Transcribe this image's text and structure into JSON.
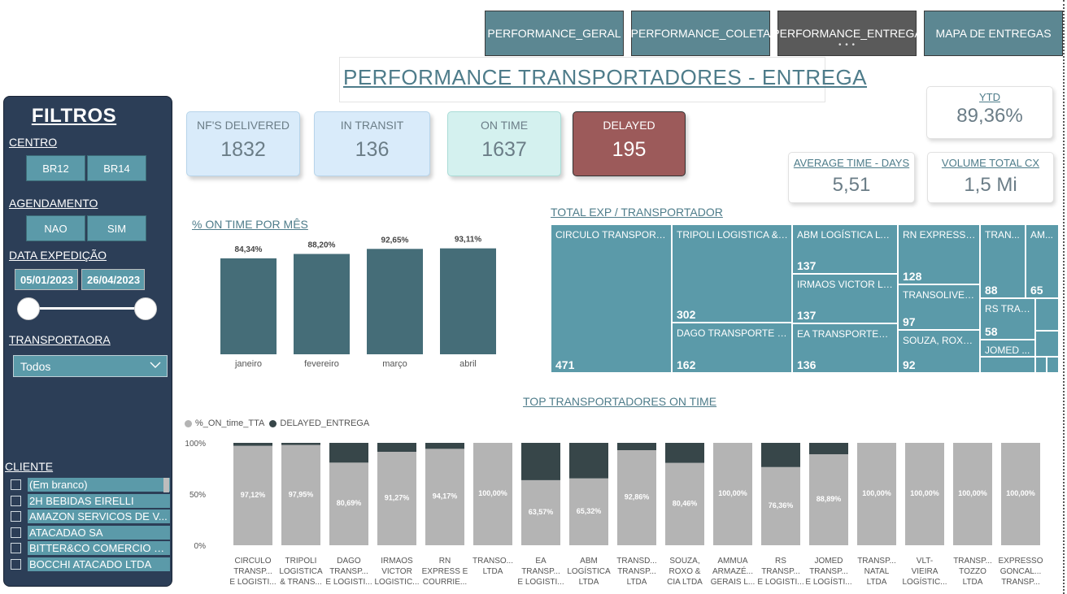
{
  "nav": [
    {
      "label": "PERFORMANCE_GERAL",
      "active": false
    },
    {
      "label": "PERFORMANCE_COLETA",
      "active": false
    },
    {
      "label": "PERFORMANCE_ENTREGA",
      "active": true
    },
    {
      "label": "MAPA DE ENTREGAS",
      "active": false
    }
  ],
  "nav_active_dots": "• • •",
  "page_title": "PERFORMANCE TRANSPORTADORES - ENTREGA",
  "sidebar": {
    "title": "FILTROS",
    "centro_label": "CENTRO",
    "centro_options": [
      "BR12",
      "BR14"
    ],
    "agendamento_label": "AGENDAMENTO",
    "agendamento_options": [
      "NAO",
      "SIM"
    ],
    "data_label": "DATA EXPEDIÇÃO",
    "date_start": "05/01/2023",
    "date_end": "26/04/2023",
    "transportadora_label": "TRANSPORTAORA",
    "transportadora_value": "Todos",
    "cliente_label": "CLIENTE",
    "clientes": [
      "(Em branco)",
      "2H BEBIDAS EIRELLI",
      "AMAZON SERVICOS DE V...",
      "ATACADAO SA",
      "BITTER&CO COMERCIO E ...",
      "BOCCHI ATACADO LTDA"
    ]
  },
  "kpis": [
    {
      "label": "NF'S DELIVERED",
      "value": "1832",
      "color": "#d9ebfa"
    },
    {
      "label": "IN TRANSIT",
      "value": "136",
      "color": "#d9ebfa"
    },
    {
      "label": "ON TIME",
      "value": "1637",
      "color": "#d4f1ef"
    },
    {
      "label": "DELAYED",
      "value": "195",
      "color": "#9c5a5a"
    }
  ],
  "ytd": {
    "label": "YTD",
    "value": "89,36%"
  },
  "avg_time": {
    "label": "AVERAGE TIME - DAYS",
    "value": "5,51"
  },
  "volume": {
    "label": "VOLUME TOTAL CX",
    "value": "1,5 Mi"
  },
  "monthly_title": "% ON TIME POR MÊS",
  "treemap_title": "TOTAL EXP / TRANSPORTADOR",
  "treemap": [
    {
      "name": "CIRCULO TRANSPORTE...",
      "value": "471"
    },
    {
      "name": "TRIPOLI LOGISTICA & T...",
      "value": "302"
    },
    {
      "name": "DAGO TRANSPORTE E ...",
      "value": "162"
    },
    {
      "name": "ABM LOGÍSTICA LTDA",
      "value": "137"
    },
    {
      "name": "IRMAOS VICTOR LO...",
      "value": "137"
    },
    {
      "name": "EA TRANSPORTES E ...",
      "value": "136"
    },
    {
      "name": "RN EXPRESS E ...",
      "value": "128"
    },
    {
      "name": "TRANSOLIVEIR...",
      "value": "97"
    },
    {
      "name": "SOUZA, ROXO ...",
      "value": "92"
    },
    {
      "name": "TRAN...",
      "value": "88"
    },
    {
      "name": "AM...",
      "value": "65"
    },
    {
      "name": "RS TRAN...",
      "value": "58"
    },
    {
      "name": "JOMED ...",
      "value": ""
    }
  ],
  "top_title": "TOP TRANSPORTADORES ON TIME",
  "colors": {
    "bar_dark": "#456d78",
    "ontime": "#b4b4b4",
    "delayed": "#374649",
    "treemap": "#5b9aa9"
  },
  "chart_data": [
    {
      "type": "bar",
      "title": "% ON TIME POR MÊS",
      "categories": [
        "janeiro",
        "fevereiro",
        "março",
        "abril"
      ],
      "values": [
        84.34,
        88.2,
        92.65,
        93.11
      ],
      "labels": [
        "84,34%",
        "88,20%",
        "92,65%",
        "93,11%"
      ],
      "ylim": [
        0,
        100
      ]
    },
    {
      "type": "bar",
      "stacked": true,
      "title": "TOP TRANSPORTADORES ON TIME",
      "categories": [
        "CIRCULO TRANSP... E LOGISTI...",
        "TRIPOLI LOGISTICA & TRANS...",
        "DAGO TRANSP... E LOGISTI...",
        "IRMAOS VICTOR LOGISTIC...",
        "RN EXPRESS E COURRIE...",
        "TRANSO... LTDA",
        "EA TRANSP... E LOGISTI...",
        "ABM LOGÍSTICA LTDA",
        "TRANSD... TRANSP... LTDA",
        "SOUZA, ROXO & CIA LTDA",
        "AMMUA ARMAZÉ... GERAIS L...",
        "RS TRANSP... E LOGISTI...",
        "JOMED TRANSP... E LOGÍSTI...",
        "TRANSP... NATAL LTDA",
        "VLT- VIEIRA LOGÍSTIC...",
        "TRANSP... TOZZO LTDA",
        "EXPRESSO GONCAL... TRANSP..."
      ],
      "category_lines": [
        [
          "CIRCULO",
          "TRANSP...",
          "E LOGISTI..."
        ],
        [
          "TRIPOLI",
          "LOGISTICA",
          "& TRANS..."
        ],
        [
          "DAGO",
          "TRANSP...",
          "E LOGISTI..."
        ],
        [
          "IRMAOS",
          "VICTOR",
          "LOGISTIC..."
        ],
        [
          "RN",
          "EXPRESS E",
          "COURRIE..."
        ],
        [
          "TRANSO...",
          "LTDA"
        ],
        [
          "EA",
          "TRANSP...",
          "E LOGISTI..."
        ],
        [
          "ABM",
          "LOGÍSTICA",
          "LTDA"
        ],
        [
          "TRANSD...",
          "TRANSP...",
          "LTDA"
        ],
        [
          "SOUZA,",
          "ROXO &",
          "CIA LTDA"
        ],
        [
          "AMMUA",
          "ARMAZÉ...",
          "GERAIS L..."
        ],
        [
          "RS",
          "TRANSP...",
          "E LOGISTI..."
        ],
        [
          "JOMED",
          "TRANSP...",
          "E LOGÍSTI..."
        ],
        [
          "TRANSP...",
          "NATAL",
          "LTDA"
        ],
        [
          "VLT-",
          "VIEIRA",
          "LOGÍSTIC..."
        ],
        [
          "TRANSP...",
          "TOZZO",
          "LTDA"
        ],
        [
          "EXPRESSO",
          "GONCAL...",
          "TRANSP..."
        ]
      ],
      "series": [
        {
          "name": "%_ON_time_TTA",
          "values": [
            97.12,
            97.95,
            80.69,
            91.27,
            94.17,
            100,
            63.57,
            65.32,
            92.86,
            80.46,
            100,
            76.36,
            88.89,
            100,
            100,
            100,
            100
          ]
        },
        {
          "name": "DELAYED_ENTREGA",
          "values": [
            2.88,
            2.05,
            19.31,
            8.73,
            5.83,
            0,
            36.43,
            34.68,
            7.14,
            19.54,
            0,
            23.64,
            11.11,
            0,
            0,
            0,
            0
          ]
        }
      ],
      "labels": [
        "97,12%",
        "97,95%",
        "80,69%",
        "91,27%",
        "94,17%",
        "100,00%",
        "63,57%",
        "65,32%",
        "92,86%",
        "80,46%",
        "100,00%",
        "76,36%",
        "88,89%",
        "100,00%",
        "100,00%",
        "100,00%",
        "100,00%"
      ],
      "yticks": [
        "0%",
        "50%",
        "100%"
      ],
      "ylim": [
        0,
        100
      ],
      "legend": "top-left"
    }
  ]
}
